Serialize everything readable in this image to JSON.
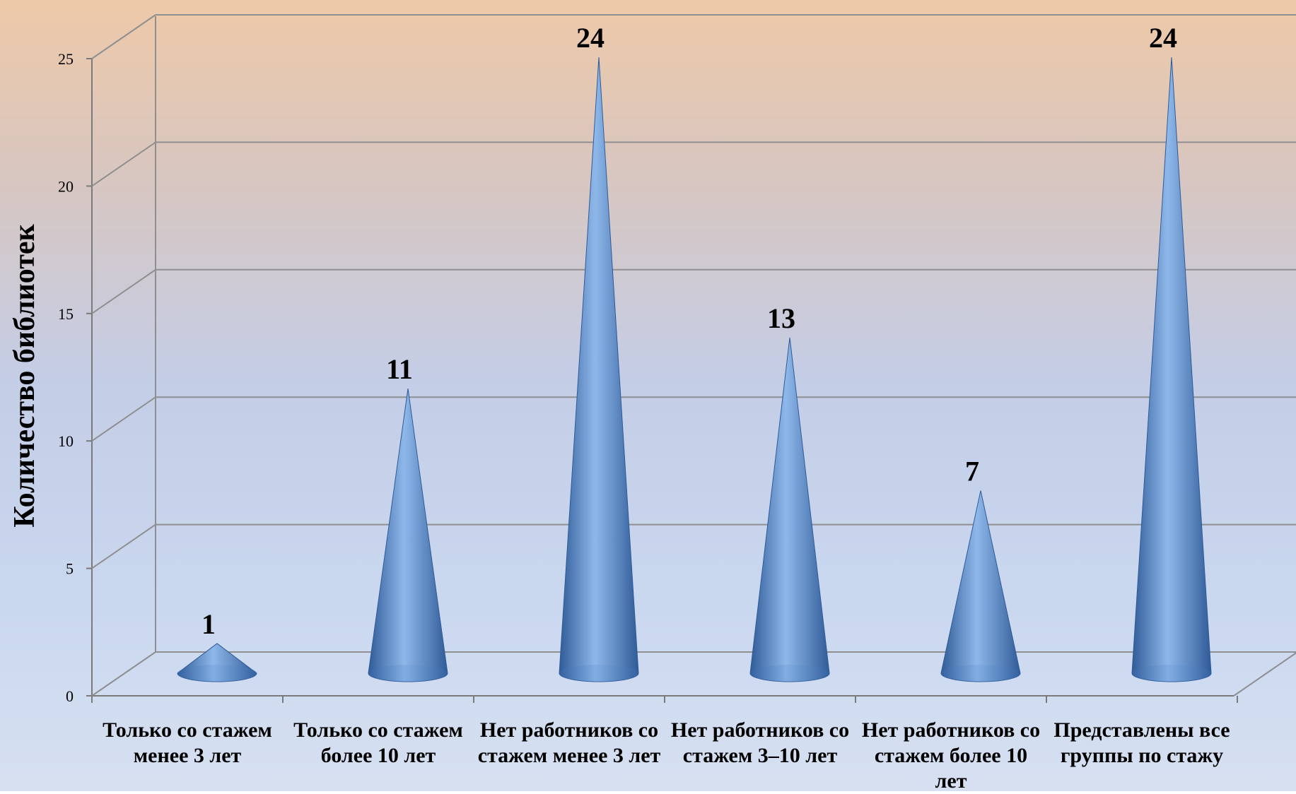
{
  "colors": {
    "cone_dark": "#2f5b98",
    "cone_mid": "#4f86c6",
    "cone_light": "#8fb8ea",
    "grid": "#8f8f8f",
    "axis": "#7a7a7a"
  },
  "chart_data": {
    "type": "bar",
    "style": "3d-cone",
    "title": "",
    "xlabel": "",
    "ylabel": "Количество библиотек",
    "ylim": [
      0,
      25
    ],
    "yticks": [
      "0",
      "5",
      "10",
      "15",
      "20",
      "25"
    ],
    "grid": true,
    "categories": [
      "Только со стажем  менее 3 лет",
      "Только со стажем более 10 лет",
      "Нет работников со стажем менее 3 лет",
      "Нет работников со стажем 3–10 лет",
      "Нет работников со стажем более 10 лет",
      "Представлены все группы по стажу"
    ],
    "values": [
      1,
      11,
      24,
      13,
      7,
      24
    ],
    "data_labels": [
      "1",
      "11",
      "24",
      "13",
      "7",
      "24"
    ]
  }
}
